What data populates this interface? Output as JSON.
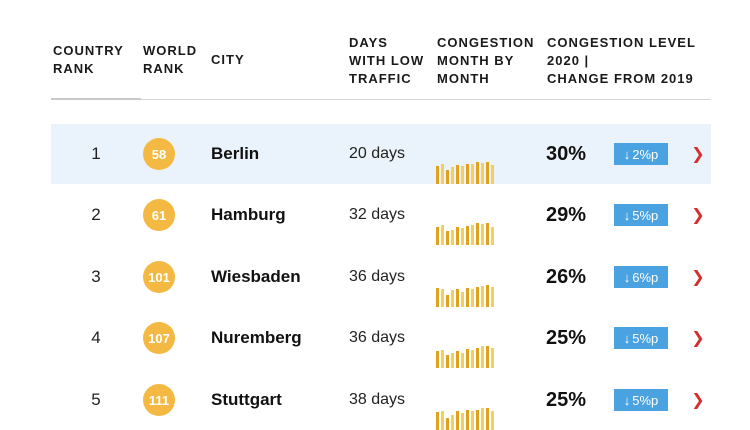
{
  "headers": {
    "country_rank": "COUNTRY\nRANK",
    "world_rank": "WORLD\nRANK",
    "city": "CITY",
    "days": "DAYS\nWITH LOW\nTRAFFIC",
    "congestion_month": "CONGESTION\nMONTH BY\nMONTH",
    "congestion_level": "CONGESTION LEVEL\n2020 |\nCHANGE FROM 2019"
  },
  "colors": {
    "accent_badge": "#f4b942",
    "change_badge": "#4aa3e0",
    "highlight_row": "#eaf2fb",
    "chevron": "#d32f2f"
  },
  "rows": [
    {
      "country_rank": "1",
      "world_rank": "58",
      "city": "Berlin",
      "days": "20 days",
      "level": "30%",
      "change_arrow": "↓",
      "change": "2%p",
      "highlight": true,
      "monthly": [
        0.8,
        0.9,
        0.65,
        0.75,
        0.85,
        0.8,
        0.9,
        0.9,
        1.0,
        0.95,
        1.0,
        0.85
      ]
    },
    {
      "country_rank": "2",
      "world_rank": "61",
      "city": "Hamburg",
      "days": "32 days",
      "level": "29%",
      "change_arrow": "↓",
      "change": "5%p",
      "highlight": false,
      "monthly": [
        0.8,
        0.9,
        0.65,
        0.7,
        0.8,
        0.75,
        0.85,
        0.9,
        1.0,
        0.95,
        1.0,
        0.8
      ]
    },
    {
      "country_rank": "3",
      "world_rank": "101",
      "city": "Wiesbaden",
      "days": "36 days",
      "level": "26%",
      "change_arrow": "↓",
      "change": "6%p",
      "highlight": false,
      "monthly": [
        0.85,
        0.8,
        0.55,
        0.75,
        0.8,
        0.7,
        0.85,
        0.8,
        0.9,
        0.95,
        1.0,
        0.9
      ]
    },
    {
      "country_rank": "4",
      "world_rank": "107",
      "city": "Nuremberg",
      "days": "36 days",
      "level": "25%",
      "change_arrow": "↓",
      "change": "5%p",
      "highlight": false,
      "monthly": [
        0.75,
        0.8,
        0.6,
        0.7,
        0.75,
        0.7,
        0.85,
        0.8,
        0.9,
        1.0,
        1.0,
        0.9
      ]
    },
    {
      "country_rank": "5",
      "world_rank": "111",
      "city": "Stuttgart",
      "days": "38 days",
      "level": "25%",
      "change_arrow": "↓",
      "change": "5%p",
      "highlight": false,
      "monthly": [
        0.8,
        0.85,
        0.55,
        0.7,
        0.85,
        0.75,
        0.9,
        0.85,
        0.9,
        1.0,
        1.0,
        0.85
      ]
    }
  ]
}
